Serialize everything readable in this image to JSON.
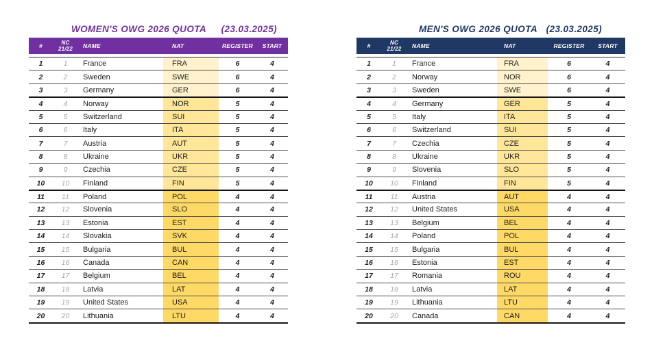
{
  "page": {
    "background": "#ffffff"
  },
  "tier_colors": {
    "1": "#FFF2CC",
    "2": "#FFE699",
    "3": "#FFD966"
  },
  "tables": [
    {
      "title": "WOMEN'S OWG 2026 QUOTA",
      "date": "(23.03.2025)",
      "accent_color": "#7030A0",
      "header": {
        "rank": "#",
        "nc_top": "NC",
        "nc_bottom": "21/22",
        "name": "NAME",
        "nat": "NAT",
        "register": "REGISTER",
        "start": "START"
      },
      "rows": [
        {
          "rank": "1",
          "nc": "1",
          "name": "France",
          "nat": "FRA",
          "register": "6",
          "start": "4",
          "tier": 1
        },
        {
          "rank": "2",
          "nc": "2",
          "name": "Sweden",
          "nat": "SWE",
          "register": "6",
          "start": "4",
          "tier": 1
        },
        {
          "rank": "3",
          "nc": "3",
          "name": "Germany",
          "nat": "GER",
          "register": "6",
          "start": "4",
          "tier": 1
        },
        {
          "rank": "4",
          "nc": "4",
          "name": "Norway",
          "nat": "NOR",
          "register": "5",
          "start": "4",
          "tier": 2
        },
        {
          "rank": "5",
          "nc": "5",
          "name": "Switzerland",
          "nat": "SUI",
          "register": "5",
          "start": "4",
          "tier": 2
        },
        {
          "rank": "6",
          "nc": "6",
          "name": "Italy",
          "nat": "ITA",
          "register": "5",
          "start": "4",
          "tier": 2
        },
        {
          "rank": "7",
          "nc": "7",
          "name": "Austria",
          "nat": "AUT",
          "register": "5",
          "start": "4",
          "tier": 2
        },
        {
          "rank": "8",
          "nc": "8",
          "name": "Ukraine",
          "nat": "UKR",
          "register": "5",
          "start": "4",
          "tier": 2
        },
        {
          "rank": "9",
          "nc": "9",
          "name": "Czechia",
          "nat": "CZE",
          "register": "5",
          "start": "4",
          "tier": 2
        },
        {
          "rank": "10",
          "nc": "10",
          "name": "Finland",
          "nat": "FIN",
          "register": "5",
          "start": "4",
          "tier": 2
        },
        {
          "rank": "11",
          "nc": "11",
          "name": "Poland",
          "nat": "POL",
          "register": "4",
          "start": "4",
          "tier": 3
        },
        {
          "rank": "12",
          "nc": "12",
          "name": "Slovenia",
          "nat": "SLO",
          "register": "4",
          "start": "4",
          "tier": 3
        },
        {
          "rank": "13",
          "nc": "13",
          "name": "Estonia",
          "nat": "EST",
          "register": "4",
          "start": "4",
          "tier": 3
        },
        {
          "rank": "14",
          "nc": "14",
          "name": "Slovakia",
          "nat": "SVK",
          "register": "4",
          "start": "4",
          "tier": 3
        },
        {
          "rank": "15",
          "nc": "15",
          "name": "Bulgaria",
          "nat": "BUL",
          "register": "4",
          "start": "4",
          "tier": 3
        },
        {
          "rank": "16",
          "nc": "16",
          "name": "Canada",
          "nat": "CAN",
          "register": "4",
          "start": "4",
          "tier": 3
        },
        {
          "rank": "17",
          "nc": "17",
          "name": "Belgium",
          "nat": "BEL",
          "register": "4",
          "start": "4",
          "tier": 3
        },
        {
          "rank": "18",
          "nc": "18",
          "name": "Latvia",
          "nat": "LAT",
          "register": "4",
          "start": "4",
          "tier": 3
        },
        {
          "rank": "19",
          "nc": "19",
          "name": "United States",
          "nat": "USA",
          "register": "4",
          "start": "4",
          "tier": 3
        },
        {
          "rank": "20",
          "nc": "20",
          "name": "Lithuania",
          "nat": "LTU",
          "register": "4",
          "start": "4",
          "tier": 3
        }
      ]
    },
    {
      "title": "MEN'S OWG 2026 QUOTA",
      "date": "(23.03.2025)",
      "accent_color": "#1F3864",
      "header": {
        "rank": "#",
        "nc_top": "NC",
        "nc_bottom": "21/22",
        "name": "NAME",
        "nat": "NAT",
        "register": "REGISTER",
        "start": "START"
      },
      "rows": [
        {
          "rank": "1",
          "nc": "1",
          "name": "France",
          "nat": "FRA",
          "register": "6",
          "start": "4",
          "tier": 1
        },
        {
          "rank": "2",
          "nc": "2",
          "name": "Norway",
          "nat": "NOR",
          "register": "6",
          "start": "4",
          "tier": 1
        },
        {
          "rank": "3",
          "nc": "3",
          "name": "Sweden",
          "nat": "SWE",
          "register": "6",
          "start": "4",
          "tier": 1
        },
        {
          "rank": "4",
          "nc": "4",
          "name": "Germany",
          "nat": "GER",
          "register": "5",
          "start": "4",
          "tier": 2
        },
        {
          "rank": "5",
          "nc": "5",
          "name": "Italy",
          "nat": "ITA",
          "register": "5",
          "start": "4",
          "tier": 2
        },
        {
          "rank": "6",
          "nc": "6",
          "name": "Switzerland",
          "nat": "SUI",
          "register": "5",
          "start": "4",
          "tier": 2
        },
        {
          "rank": "7",
          "nc": "7",
          "name": "Czechia",
          "nat": "CZE",
          "register": "5",
          "start": "4",
          "tier": 2
        },
        {
          "rank": "8",
          "nc": "8",
          "name": "Ukraine",
          "nat": "UKR",
          "register": "5",
          "start": "4",
          "tier": 2
        },
        {
          "rank": "9",
          "nc": "9",
          "name": "Slovenia",
          "nat": "SLO",
          "register": "5",
          "start": "4",
          "tier": 2
        },
        {
          "rank": "10",
          "nc": "10",
          "name": "Finland",
          "nat": "FIN",
          "register": "5",
          "start": "4",
          "tier": 2
        },
        {
          "rank": "11",
          "nc": "11",
          "name": "Austria",
          "nat": "AUT",
          "register": "4",
          "start": "4",
          "tier": 3
        },
        {
          "rank": "12",
          "nc": "12",
          "name": "United States",
          "nat": "USA",
          "register": "4",
          "start": "4",
          "tier": 3
        },
        {
          "rank": "13",
          "nc": "13",
          "name": "Belgium",
          "nat": "BEL",
          "register": "4",
          "start": "4",
          "tier": 3
        },
        {
          "rank": "14",
          "nc": "14",
          "name": "Poland",
          "nat": "POL",
          "register": "4",
          "start": "4",
          "tier": 3
        },
        {
          "rank": "15",
          "nc": "15",
          "name": "Bulgaria",
          "nat": "BUL",
          "register": "4",
          "start": "4",
          "tier": 3
        },
        {
          "rank": "16",
          "nc": "16",
          "name": "Estonia",
          "nat": "EST",
          "register": "4",
          "start": "4",
          "tier": 3
        },
        {
          "rank": "17",
          "nc": "17",
          "name": "Romania",
          "nat": "ROU",
          "register": "4",
          "start": "4",
          "tier": 3
        },
        {
          "rank": "18",
          "nc": "18",
          "name": "Latvia",
          "nat": "LAT",
          "register": "4",
          "start": "4",
          "tier": 3
        },
        {
          "rank": "19",
          "nc": "19",
          "name": "Lithuania",
          "nat": "LTU",
          "register": "4",
          "start": "4",
          "tier": 3
        },
        {
          "rank": "20",
          "nc": "20",
          "name": "Canada",
          "nat": "CAN",
          "register": "4",
          "start": "4",
          "tier": 3
        }
      ]
    }
  ]
}
